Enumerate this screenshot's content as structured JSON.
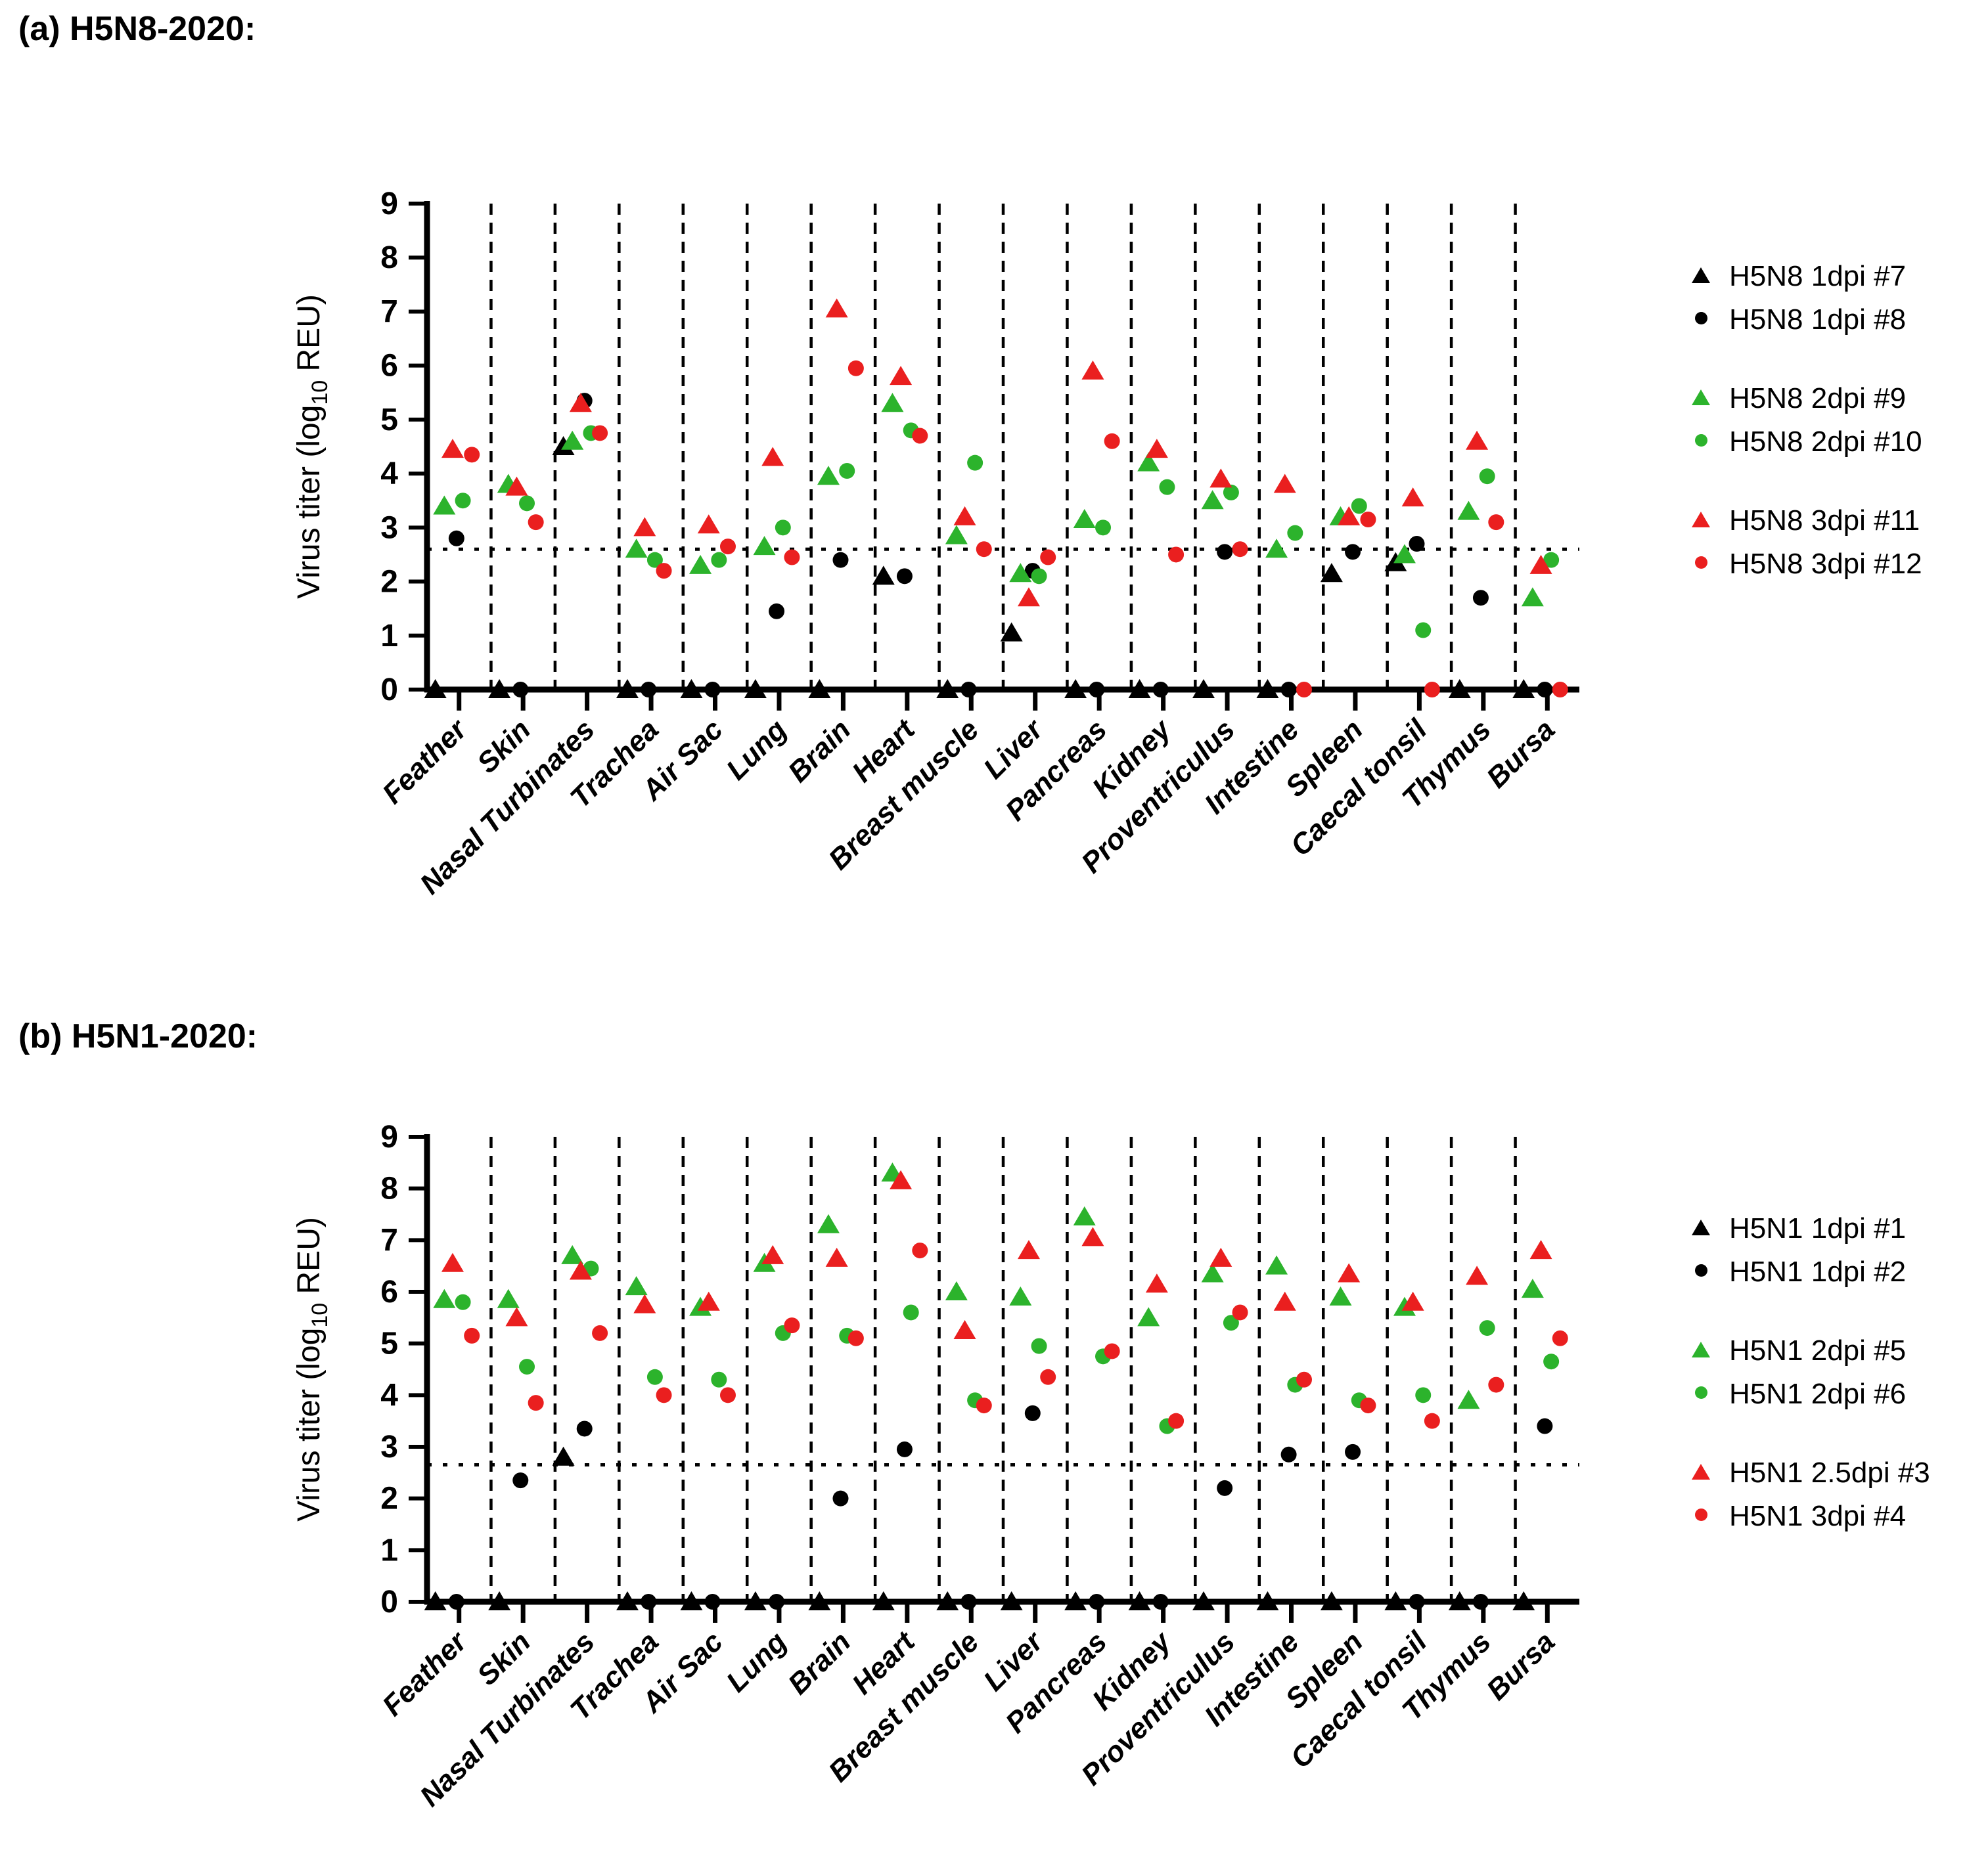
{
  "figure": {
    "panels": [
      {
        "title": "(a) H5N8-2020:"
      },
      {
        "title": "(b) H5N1-2020:"
      }
    ],
    "ylabel": {
      "prefix": "Virus titer (log",
      "sub": "10",
      "suffix": " REU)"
    },
    "colors": {
      "black": "#000000",
      "green": "#2cb32c",
      "red": "#ea1f1f"
    }
  },
  "chart_data": [
    {
      "type": "scatter",
      "title": "(a) H5N8-2020:",
      "ylabel": "Virus titer (log10 REU)",
      "ylim": [
        0,
        9
      ],
      "yticks": [
        0,
        1,
        2,
        3,
        4,
        5,
        6,
        7,
        8,
        9
      ],
      "grid": "dashed-vertical-separators",
      "detection_limit": 2.6,
      "legend_position": "right",
      "categories": [
        "Feather",
        "Skin",
        "Nasal Turbinates",
        "Trachea",
        "Air Sac",
        "Lung",
        "Brain",
        "Heart",
        "Breast muscle",
        "Liver",
        "Pancreas",
        "Kidney",
        "Proventriculus",
        "Intestine",
        "Spleen",
        "Caecal tonsil",
        "Thymus",
        "Bursa"
      ],
      "series": [
        {
          "name": "H5N8 1dpi #7",
          "marker": "triangle",
          "color": "black",
          "values": [
            0,
            0,
            4.5,
            0,
            0,
            0,
            0,
            2.1,
            0,
            1.05,
            0,
            0,
            0,
            0,
            2.15,
            2.35,
            0,
            0
          ]
        },
        {
          "name": "H5N8 1dpi #8",
          "marker": "circle",
          "color": "black",
          "values": [
            2.8,
            0,
            5.35,
            0,
            0,
            1.45,
            2.4,
            2.1,
            0,
            2.2,
            0,
            0,
            2.55,
            0,
            2.55,
            2.7,
            1.7,
            0
          ]
        },
        {
          "name": "H5N8 2dpi #9",
          "marker": "triangle",
          "color": "green",
          "values": [
            3.4,
            3.8,
            4.6,
            2.6,
            2.3,
            2.65,
            3.95,
            5.3,
            2.85,
            2.15,
            3.15,
            4.2,
            3.5,
            2.6,
            3.2,
            2.5,
            3.3,
            1.7
          ]
        },
        {
          "name": "H5N8 2dpi #10",
          "marker": "circle",
          "color": "green",
          "values": [
            3.5,
            3.45,
            4.75,
            2.4,
            2.4,
            3.0,
            4.05,
            4.8,
            4.2,
            2.1,
            3.0,
            3.75,
            3.65,
            2.9,
            3.4,
            1.1,
            3.95,
            2.4
          ]
        },
        {
          "name": "H5N8 3dpi #11",
          "marker": "triangle",
          "color": "red",
          "values": [
            4.45,
            3.75,
            5.3,
            3.0,
            3.05,
            4.3,
            7.05,
            5.8,
            3.2,
            1.7,
            5.9,
            4.45,
            3.9,
            3.8,
            3.2,
            3.55,
            4.6,
            2.3
          ]
        },
        {
          "name": "H5N8 3dpi #12",
          "marker": "circle",
          "color": "red",
          "values": [
            4.35,
            3.1,
            4.75,
            2.2,
            2.65,
            2.45,
            5.95,
            4.7,
            2.6,
            2.45,
            4.6,
            2.5,
            2.6,
            0,
            3.15,
            0,
            3.1,
            0
          ]
        }
      ]
    },
    {
      "type": "scatter",
      "title": "(b) H5N1-2020:",
      "ylabel": "Virus titer (log10 REU)",
      "ylim": [
        0,
        9
      ],
      "yticks": [
        0,
        1,
        2,
        3,
        4,
        5,
        6,
        7,
        8,
        9
      ],
      "grid": "dashed-vertical-separators",
      "detection_limit": 2.65,
      "legend_position": "right",
      "categories": [
        "Feather",
        "Skin",
        "Nasal Turbinates",
        "Trachea",
        "Air Sac",
        "Lung",
        "Brain",
        "Heart",
        "Breast muscle",
        "Liver",
        "Pancreas",
        "Kidney",
        "Proventriculus",
        "Intestine",
        "Spleen",
        "Caecal tonsil",
        "Thymus",
        "Bursa"
      ],
      "series": [
        {
          "name": "H5N1 1dpi #1",
          "marker": "triangle",
          "color": "black",
          "values": [
            0,
            0,
            2.8,
            0,
            0,
            0,
            0,
            0,
            0,
            0,
            0,
            0,
            0,
            0,
            0,
            0,
            0,
            0
          ]
        },
        {
          "name": "H5N1 1dpi #2",
          "marker": "circle",
          "color": "black",
          "values": [
            0,
            2.35,
            3.35,
            0,
            0,
            0,
            2.0,
            2.95,
            0,
            3.65,
            0,
            0,
            2.2,
            2.85,
            2.9,
            0,
            0,
            3.4
          ]
        },
        {
          "name": "H5N1 2dpi #5",
          "marker": "triangle",
          "color": "green",
          "values": [
            5.85,
            5.85,
            6.7,
            6.1,
            5.7,
            6.55,
            7.3,
            8.3,
            6.0,
            5.9,
            7.45,
            5.5,
            6.35,
            6.5,
            5.9,
            5.7,
            3.9,
            6.05
          ]
        },
        {
          "name": "H5N1 2dpi #6",
          "marker": "circle",
          "color": "green",
          "values": [
            5.8,
            4.55,
            6.45,
            4.35,
            4.3,
            5.2,
            5.15,
            5.6,
            3.9,
            4.95,
            4.75,
            3.4,
            5.4,
            4.2,
            3.9,
            4.0,
            5.3,
            4.65
          ]
        },
        {
          "name": "H5N1 2.5dpi #3",
          "marker": "triangle",
          "color": "red",
          "values": [
            6.55,
            5.5,
            6.4,
            5.75,
            5.8,
            6.7,
            6.65,
            8.15,
            5.25,
            6.8,
            7.05,
            6.15,
            6.65,
            5.8,
            6.35,
            5.8,
            6.3,
            6.8
          ]
        },
        {
          "name": "H5N1 3dpi #4",
          "marker": "circle",
          "color": "red",
          "values": [
            5.15,
            3.85,
            5.2,
            4.0,
            4.0,
            5.35,
            5.1,
            6.8,
            3.8,
            4.35,
            4.85,
            3.5,
            5.6,
            4.3,
            3.8,
            3.5,
            4.2,
            5.1
          ]
        }
      ]
    }
  ]
}
